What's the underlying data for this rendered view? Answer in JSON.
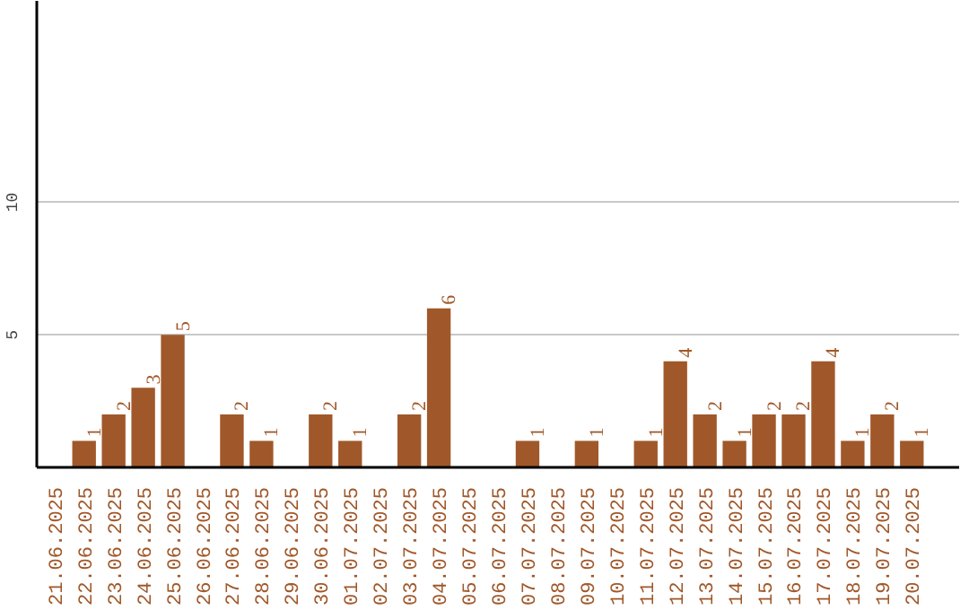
{
  "chart_data": {
    "type": "bar",
    "categories": [
      "21.06.2025",
      "22.06.2025",
      "23.06.2025",
      "24.06.2025",
      "25.06.2025",
      "26.06.2025",
      "27.06.2025",
      "28.06.2025",
      "29.06.2025",
      "30.06.2025",
      "01.07.2025",
      "02.07.2025",
      "03.07.2025",
      "04.07.2025",
      "05.07.2025",
      "06.07.2025",
      "07.07.2025",
      "08.07.2025",
      "09.07.2025",
      "10.07.2025",
      "11.07.2025",
      "12.07.2025",
      "13.07.2025",
      "14.07.2025",
      "15.07.2025",
      "16.07.2025",
      "17.07.2025",
      "18.07.2025",
      "19.07.2025",
      "20.07.2025"
    ],
    "values": [
      0,
      1,
      2,
      3,
      5,
      0,
      2,
      1,
      0,
      2,
      1,
      0,
      2,
      6,
      0,
      0,
      1,
      0,
      1,
      0,
      1,
      4,
      2,
      1,
      2,
      2,
      4,
      1,
      2,
      1
    ],
    "value_labels": [
      null,
      "1",
      "2",
      "3",
      "5",
      null,
      "2",
      "1",
      null,
      "2",
      "1",
      null,
      "2",
      "6",
      null,
      null,
      "1",
      null,
      "1",
      null,
      "1",
      "4",
      "2",
      "1",
      "2",
      "2",
      "4",
      "1",
      "2",
      "1"
    ],
    "color": "#a0582a",
    "ylim": [
      0,
      17.6
    ],
    "yticks": [
      5,
      10
    ],
    "grid": "y"
  }
}
